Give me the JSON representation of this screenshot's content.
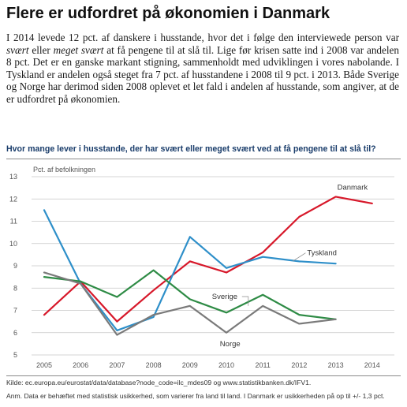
{
  "page": {
    "title": "Flere er udfordret på økonomien i Danmark",
    "paragraph": {
      "p1": "I 2014 levede 12 pct. af danskere i husstande, hvor det i følge den interviewede person var ",
      "em1": "svært",
      "p2": " eller ",
      "em2": "meget svært",
      "p3": " at få pengene til at slå til. Lige før krisen satte ind i 2008 var andelen 8 pct. Det er en ganske markant stigning, sammenholdt med udviklingen i vores nabolande. I Tyskland er andelen også steget fra 7 pct. af husstandene i 2008 til 9 pct. i 2013. Både Sverige og Norge har derimod siden 2008 oplevet et let fald i andelen af husstande, som angiver, at de er udfordret på økonomien."
    },
    "source": "Kilde: ec.europa.eu/eurostat/data/database?node_code=ilc_mdes09 og www.statistikbanken.dk/IFV1.",
    "note": "Anm. Data er behæftet med statistisk usikkerhed, som varierer fra land til land. I Danmark er usikkerheden på op til +/- 1,3 pct."
  },
  "chart_data": {
    "type": "line",
    "title": "Hvor mange lever i husstande, der har svært eller meget svært ved at få pengene til at slå til?",
    "ylabel": "Pct. af befolkningen",
    "xlabel": "",
    "x": [
      "2005",
      "2006",
      "2007",
      "2008",
      "2009",
      "2010",
      "2011",
      "2012",
      "2013",
      "2014"
    ],
    "ylim": [
      5,
      13
    ],
    "yticks": [
      5,
      6,
      7,
      8,
      9,
      10,
      11,
      12,
      13
    ],
    "grid": "horizontal",
    "legend": "inline labels",
    "series": [
      {
        "name": "Danmark",
        "color": "#d7182a",
        "values": [
          6.8,
          8.3,
          6.5,
          7.9,
          9.2,
          8.7,
          9.6,
          11.2,
          12.1,
          11.8
        ]
      },
      {
        "name": "Tyskland",
        "color": "#2e8fc9",
        "values": [
          11.5,
          8.2,
          6.1,
          6.7,
          10.3,
          8.9,
          9.4,
          9.2,
          9.1,
          null
        ]
      },
      {
        "name": "Sverige",
        "color": "#2e8b45",
        "values": [
          8.5,
          8.3,
          7.6,
          8.8,
          7.5,
          6.9,
          7.7,
          6.8,
          6.6,
          null
        ]
      },
      {
        "name": "Norge",
        "color": "#7a7a7a",
        "values": [
          8.7,
          8.2,
          5.9,
          6.8,
          7.2,
          6.0,
          7.2,
          6.4,
          6.6,
          null
        ]
      }
    ]
  }
}
